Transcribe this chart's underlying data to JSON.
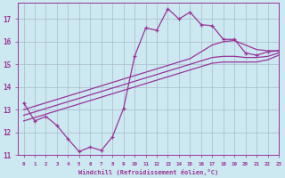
{
  "xlabel": "Windchill (Refroidissement éolien,°C)",
  "background_color": "#cce8f0",
  "grid_color": "#aabbcc",
  "line_color": "#993399",
  "xlim": [
    -0.5,
    23
  ],
  "ylim": [
    11,
    17.7
  ],
  "yticks": [
    11,
    12,
    13,
    14,
    15,
    16,
    17
  ],
  "xticks": [
    0,
    1,
    2,
    3,
    4,
    5,
    6,
    7,
    8,
    9,
    10,
    11,
    12,
    13,
    14,
    15,
    16,
    17,
    18,
    19,
    20,
    21,
    22,
    23
  ],
  "hours": [
    0,
    1,
    2,
    3,
    4,
    5,
    6,
    7,
    8,
    9,
    10,
    11,
    12,
    13,
    14,
    15,
    16,
    17,
    18,
    19,
    20,
    21,
    22,
    23
  ],
  "temp_main": [
    13.3,
    12.5,
    12.7,
    12.3,
    11.7,
    11.15,
    11.35,
    11.2,
    11.8,
    13.05,
    15.35,
    16.6,
    16.5,
    17.45,
    17.0,
    17.3,
    16.75,
    16.7,
    16.1,
    16.1,
    15.5,
    15.4,
    15.55,
    15.6
  ],
  "trend_top": [
    13.0,
    13.15,
    13.3,
    13.45,
    13.6,
    13.75,
    13.9,
    14.05,
    14.2,
    14.35,
    14.5,
    14.65,
    14.8,
    14.95,
    15.1,
    15.25,
    15.55,
    15.85,
    16.0,
    16.05,
    15.85,
    15.65,
    15.6,
    15.6
  ],
  "trend_mid": [
    12.75,
    12.9,
    13.05,
    13.2,
    13.35,
    13.5,
    13.65,
    13.8,
    13.95,
    14.1,
    14.25,
    14.4,
    14.55,
    14.7,
    14.85,
    15.0,
    15.15,
    15.3,
    15.35,
    15.35,
    15.3,
    15.3,
    15.35,
    15.5
  ],
  "trend_bot": [
    12.5,
    12.65,
    12.8,
    12.95,
    13.1,
    13.25,
    13.4,
    13.55,
    13.7,
    13.85,
    14.0,
    14.15,
    14.3,
    14.45,
    14.6,
    14.75,
    14.9,
    15.05,
    15.1,
    15.1,
    15.1,
    15.1,
    15.2,
    15.4
  ]
}
